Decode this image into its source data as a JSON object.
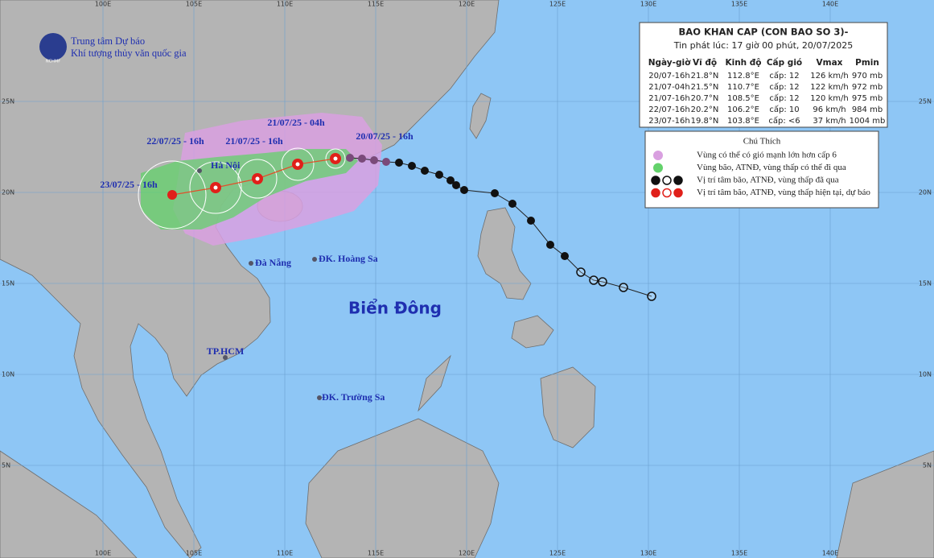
{
  "axes": {
    "lon_labels": [
      "100E",
      "105E",
      "110E",
      "115E",
      "120E",
      "125E",
      "130E",
      "135E",
      "140E"
    ],
    "lat_labels": [
      "25N",
      "20N",
      "15N",
      "10N",
      "5N"
    ]
  },
  "logo": {
    "line1": "Trung tâm Dự báo",
    "line2": "Khí tượng thủy văn quốc gia",
    "badge": "NCHMF"
  },
  "map_labels": {
    "forecast_times": [
      "20/07/25 - 16h",
      "21/07/25 - 04h",
      "21/07/25 - 16h",
      "22/07/25 - 16h",
      "23/07/25 - 16h"
    ],
    "places": [
      "Hà Nội",
      "Đà Nẵng",
      "ĐK. Hoàng Sa",
      "TP.HCM",
      "ĐK. Trường Sa"
    ],
    "sea": "Biển Đông"
  },
  "info": {
    "title": "BAO KHAN CAP (CON BAO SO 3)-",
    "issued": "Tin phát lúc: 17 giờ 00 phút, 20/07/2025",
    "headers": [
      "Ngày-giờ",
      "Vĩ độ",
      "Kinh độ",
      "Cấp gió",
      "Vmax",
      "Pmin"
    ],
    "rows": [
      [
        "20/07-16h",
        "21.8°N",
        "112.8°E",
        "cấp: 12",
        "126 km/h",
        "970 mb"
      ],
      [
        "21/07-04h",
        "21.5°N",
        "110.7°E",
        "cấp: 12",
        "122 km/h",
        "972 mb"
      ],
      [
        "21/07-16h",
        "20.7°N",
        "108.5°E",
        "cấp: 12",
        "120 km/h",
        "975 mb"
      ],
      [
        "22/07-16h",
        "20.2°N",
        "106.2°E",
        "cấp: 10",
        "96 km/h",
        "984 mb"
      ],
      [
        "23/07-16h",
        "19.8°N",
        "103.8°E",
        "cấp: <6",
        "37 km/h",
        "1004 mb"
      ]
    ]
  },
  "legend": {
    "title": "Chú Thích",
    "items": [
      "Vùng có thể có gió mạnh lớn hơn cấp 6",
      "Vùng bão, ATNĐ, vùng thấp có thể đi qua",
      "Vị trí tâm bão, ATNĐ, vùng thấp đã qua",
      "Vị trí tâm bão, ATNĐ, vùng thấp hiện tại, dự báo"
    ]
  }
}
